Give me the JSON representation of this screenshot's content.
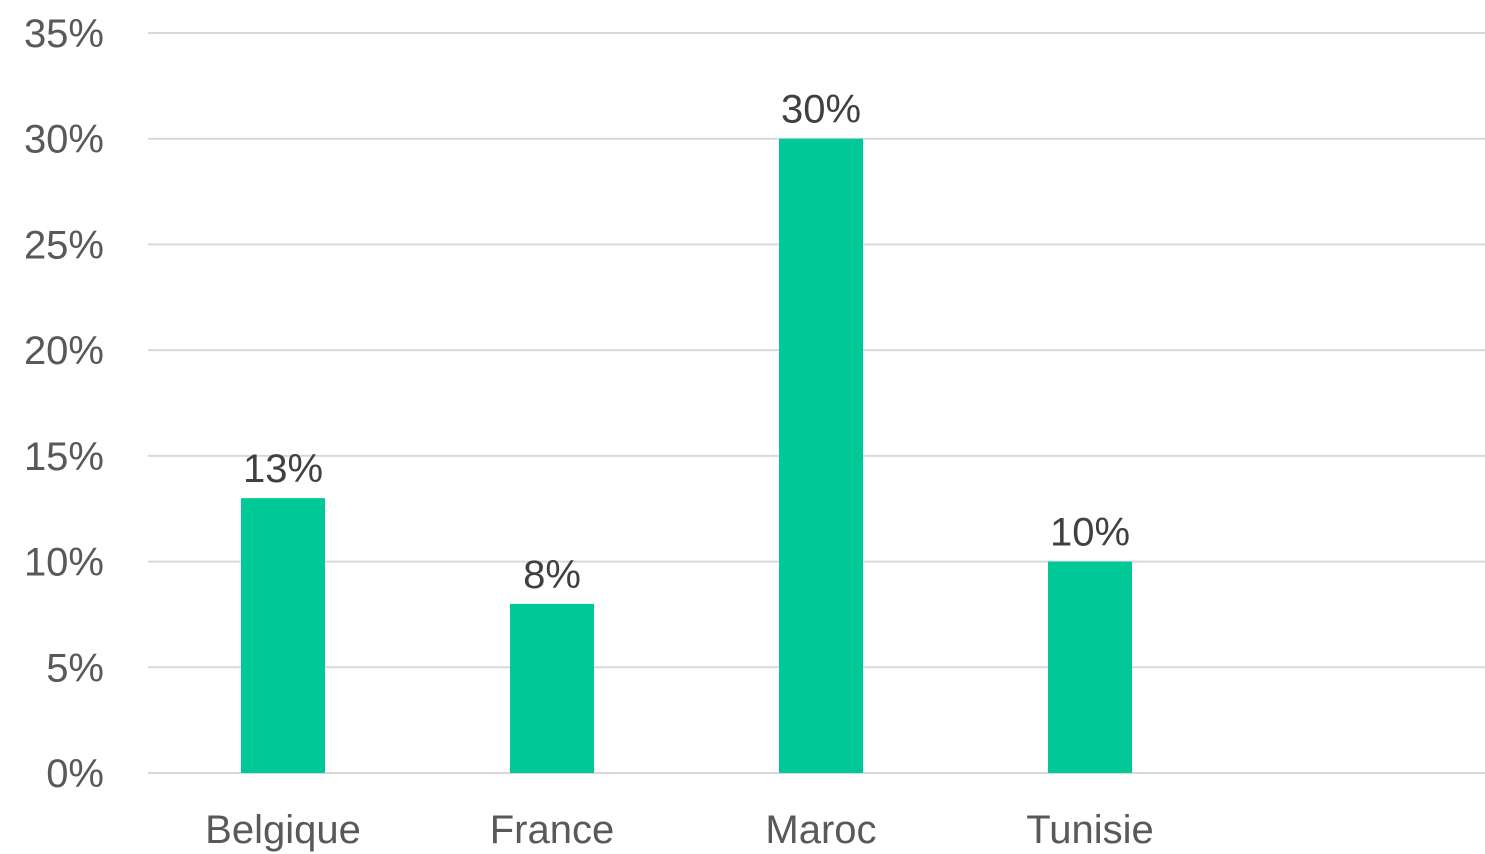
{
  "chart_data": {
    "type": "bar",
    "title": "",
    "xlabel": "",
    "ylabel": "",
    "categories": [
      "Belgique",
      "France",
      "Maroc",
      "Tunisie"
    ],
    "values": [
      13,
      8,
      30,
      10
    ],
    "data_labels": [
      "13%",
      "8%",
      "30%",
      "10%"
    ],
    "ylim": [
      0,
      35
    ],
    "yticks": [
      0,
      5,
      10,
      15,
      20,
      25,
      30,
      35
    ],
    "ytick_labels": [
      "0%",
      "5%",
      "10%",
      "15%",
      "20%",
      "25%",
      "30%",
      "35%"
    ],
    "grid": true,
    "legend": "none",
    "bar_color": "#00c896",
    "grid_color": "#d9d9d9",
    "text_color": "#595959"
  }
}
